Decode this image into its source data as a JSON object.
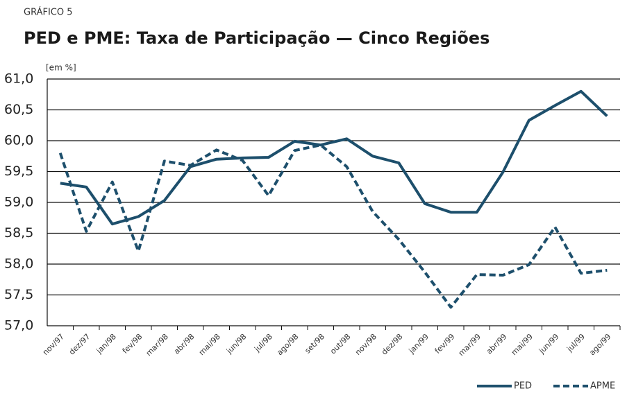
{
  "chart_data": {
    "type": "line",
    "kicker": "GRÁFICO 5",
    "title": "PED e PME: Taxa de Participação — Cinco Regiões",
    "y_label": "[em %]",
    "categories": [
      "nov/97",
      "dez/97",
      "jan/98",
      "fev/98",
      "mar/98",
      "abr/98",
      "mai/98",
      "jun/98",
      "jul/98",
      "ago/98",
      "set/98",
      "out/98",
      "nov/98",
      "dez/98",
      "jan/99",
      "fev/99",
      "mar/99",
      "abr/99",
      "mai/99",
      "jun/99",
      "jul/99",
      "ago/99"
    ],
    "series": [
      {
        "name": "PED",
        "color": "#1d4f6c",
        "dash": false,
        "values": [
          59.31,
          59.25,
          58.65,
          58.77,
          59.03,
          59.58,
          59.7,
          59.72,
          59.73,
          59.99,
          59.93,
          60.03,
          59.75,
          59.64,
          58.98,
          58.84,
          58.84,
          59.49,
          60.33,
          60.57,
          60.8,
          60.4
        ]
      },
      {
        "name": "APME",
        "color": "#1d4f6c",
        "dash": true,
        "values": [
          59.8,
          58.53,
          59.33,
          58.21,
          59.67,
          59.6,
          59.85,
          59.68,
          59.11,
          59.84,
          59.93,
          59.58,
          58.85,
          58.4,
          57.87,
          57.3,
          57.83,
          57.82,
          57.99,
          58.6,
          57.85,
          57.9
        ]
      }
    ],
    "ylim": [
      57.0,
      61.0
    ],
    "yticks": [
      {
        "value": 57.0,
        "label": "57,0"
      },
      {
        "value": 57.5,
        "label": "57,5"
      },
      {
        "value": 58.0,
        "label": "58,0"
      },
      {
        "value": 58.5,
        "label": "58,5"
      },
      {
        "value": 59.0,
        "label": "59,0"
      },
      {
        "value": 59.5,
        "label": "59,5"
      },
      {
        "value": 60.0,
        "label": "60,0"
      },
      {
        "value": 60.5,
        "label": "60,5"
      },
      {
        "value": 61.0,
        "label": "61,0"
      }
    ],
    "grid": true,
    "legend": "bottom-right"
  }
}
